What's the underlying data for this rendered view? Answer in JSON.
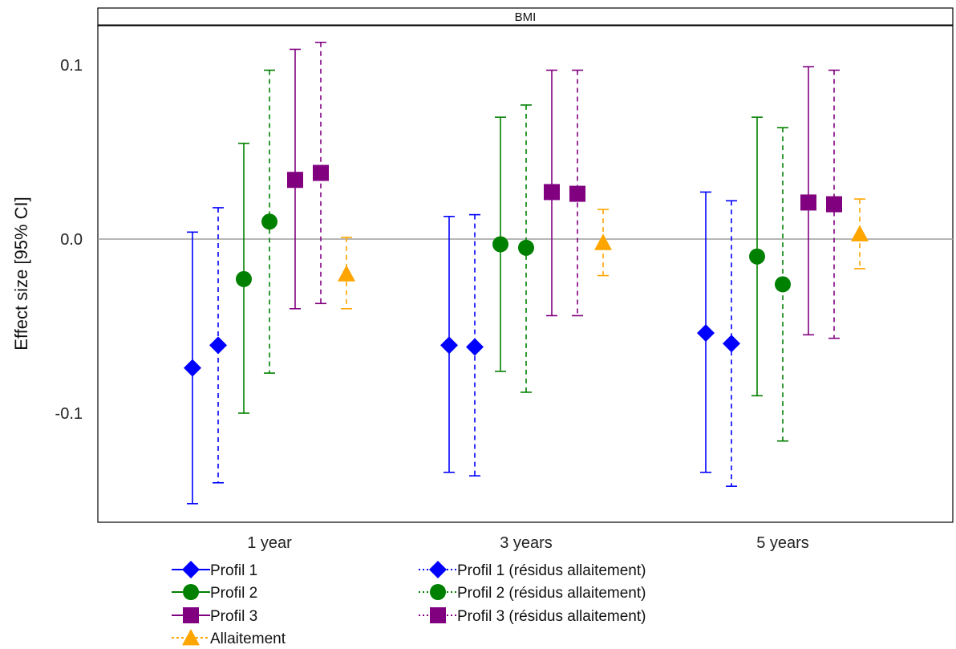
{
  "chart_data": {
    "type": "scatter",
    "title": "BMI",
    "xlabel": "",
    "ylabel": "Effect size [95% CI]",
    "categories": [
      "1 year",
      "3 years",
      "5 years"
    ],
    "ylim": [
      -0.16,
      0.12
    ],
    "yticks": [
      {
        "value": 0.1,
        "label": "0.1"
      },
      {
        "value": 0.0,
        "label": "0.0"
      },
      {
        "value": -0.1,
        "label": "-0.1"
      }
    ],
    "reference_line": 0,
    "grid": false,
    "legend_position": "bottom",
    "series": [
      {
        "name": "Profil 1",
        "color": "#0000ff",
        "marker": "diamond",
        "linestyle": "solid",
        "points": [
          {
            "category": "1 year",
            "estimate": -0.074,
            "lower": -0.152,
            "upper": 0.004
          },
          {
            "category": "3 years",
            "estimate": -0.061,
            "lower": -0.134,
            "upper": 0.013
          },
          {
            "category": "5 years",
            "estimate": -0.054,
            "lower": -0.134,
            "upper": 0.027
          }
        ]
      },
      {
        "name": "Profil 1 (résidus allaitement)",
        "color": "#0000ff",
        "marker": "diamond",
        "linestyle": "dashed",
        "points": [
          {
            "category": "1 year",
            "estimate": -0.061,
            "lower": -0.14,
            "upper": 0.018
          },
          {
            "category": "3 years",
            "estimate": -0.062,
            "lower": -0.136,
            "upper": 0.014
          },
          {
            "category": "5 years",
            "estimate": -0.06,
            "lower": -0.142,
            "upper": 0.022
          }
        ]
      },
      {
        "name": "Profil 2",
        "color": "#008000",
        "marker": "circle",
        "linestyle": "solid",
        "points": [
          {
            "category": "1 year",
            "estimate": -0.023,
            "lower": -0.1,
            "upper": 0.055
          },
          {
            "category": "3 years",
            "estimate": -0.003,
            "lower": -0.076,
            "upper": 0.07
          },
          {
            "category": "5 years",
            "estimate": -0.01,
            "lower": -0.09,
            "upper": 0.07
          }
        ]
      },
      {
        "name": "Profil 2 (résidus allaitement)",
        "color": "#008000",
        "marker": "circle",
        "linestyle": "dashed",
        "points": [
          {
            "category": "1 year",
            "estimate": 0.01,
            "lower": -0.077,
            "upper": 0.097
          },
          {
            "category": "3 years",
            "estimate": -0.005,
            "lower": -0.088,
            "upper": 0.077
          },
          {
            "category": "5 years",
            "estimate": -0.026,
            "lower": -0.116,
            "upper": 0.064
          }
        ]
      },
      {
        "name": "Profil 3",
        "color": "#800080",
        "marker": "square",
        "linestyle": "solid",
        "points": [
          {
            "category": "1 year",
            "estimate": 0.034,
            "lower": -0.04,
            "upper": 0.109
          },
          {
            "category": "3 years",
            "estimate": 0.027,
            "lower": -0.044,
            "upper": 0.097
          },
          {
            "category": "5 years",
            "estimate": 0.021,
            "lower": -0.055,
            "upper": 0.099
          }
        ]
      },
      {
        "name": "Profil 3 (résidus allaitement)",
        "color": "#800080",
        "marker": "square",
        "linestyle": "dashed",
        "points": [
          {
            "category": "1 year",
            "estimate": 0.038,
            "lower": -0.037,
            "upper": 0.113
          },
          {
            "category": "3 years",
            "estimate": 0.026,
            "lower": -0.044,
            "upper": 0.097
          },
          {
            "category": "5 years",
            "estimate": 0.02,
            "lower": -0.057,
            "upper": 0.097
          }
        ]
      },
      {
        "name": "Allaitement",
        "color": "#ffa500",
        "marker": "triangle",
        "linestyle": "dashed",
        "points": [
          {
            "category": "1 year",
            "estimate": -0.02,
            "lower": -0.04,
            "upper": 0.001
          },
          {
            "category": "3 years",
            "estimate": -0.002,
            "lower": -0.021,
            "upper": 0.017
          },
          {
            "category": "5 years",
            "estimate": 0.003,
            "lower": -0.017,
            "upper": 0.023
          }
        ]
      }
    ]
  }
}
